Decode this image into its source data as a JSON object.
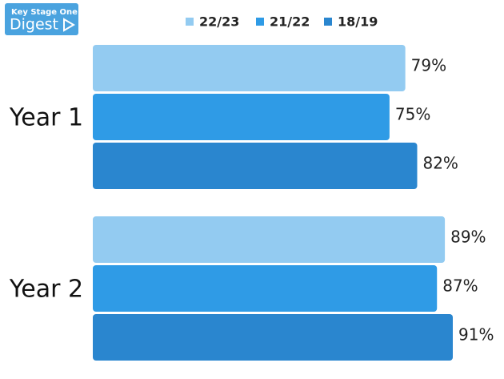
{
  "logo": {
    "top": "Key Stage One",
    "bottom": "Digest"
  },
  "chart_data": {
    "type": "hbar",
    "categories": [
      "Year 1",
      "Year 2"
    ],
    "series": [
      {
        "name": "22/23",
        "color": "#93cbf1",
        "values": [
          79,
          89
        ],
        "value_labels": [
          "79%",
          "89%"
        ]
      },
      {
        "name": "21/22",
        "color": "#2f9be6",
        "values": [
          75,
          87
        ],
        "value_labels": [
          "75%",
          "87%"
        ]
      },
      {
        "name": "18/19",
        "color": "#2a86cf",
        "values": [
          82,
          91
        ],
        "value_labels": [
          "82%",
          "91%"
        ]
      }
    ]
  }
}
